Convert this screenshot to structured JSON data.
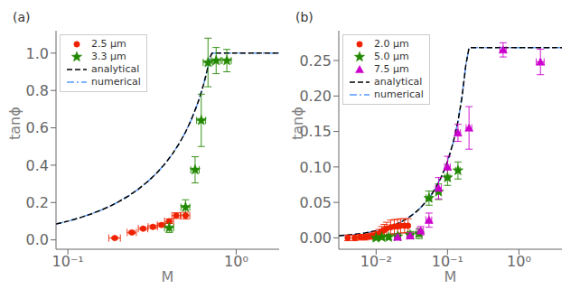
{
  "chart_data": [
    {
      "type": "scatter",
      "title": "(a)",
      "x_label": "M",
      "y_label": "tanϕ",
      "log": "x",
      "legend": "upper left",
      "xlim": [
        0.085,
        1.8
      ],
      "ylim": [
        -0.05,
        1.12
      ],
      "xticks": [
        {
          "value": 0.1,
          "label": "10⁻¹"
        },
        {
          "value": 1,
          "label": "10⁰"
        }
      ],
      "yticks": [
        {
          "value": 0.0,
          "label": "0.0"
        },
        0.2,
        0.4,
        0.6,
        0.8,
        {
          "value": 1.0,
          "label": "1.0"
        }
      ],
      "series": [
        {
          "name": "2.5 μm",
          "type": "scatter",
          "color": "#ee2200",
          "marker": "circle",
          "x": [
            0.19,
            0.24,
            0.28,
            0.32,
            0.36,
            0.4,
            0.44,
            0.5
          ],
          "values": [
            0.01,
            0.04,
            0.06,
            0.07,
            0.08,
            0.1,
            0.13,
            0.13
          ],
          "xerr": [
            0.015,
            0.015,
            0.018,
            0.02,
            0.02,
            0.025,
            0.025,
            0.03
          ],
          "yerr": [
            0.005,
            0.006,
            0.007,
            0.008,
            0.009,
            0.012,
            0.015,
            0.018
          ]
        },
        {
          "name": "3.3 μm",
          "type": "scatter",
          "color": "#228800",
          "marker": "star",
          "x": [
            0.4,
            0.5,
            0.57,
            0.62,
            0.68,
            0.76,
            0.88
          ],
          "values": [
            0.065,
            0.175,
            0.375,
            0.64,
            0.95,
            0.96,
            0.96
          ],
          "xerr": [
            0.025,
            0.03,
            0.033,
            0.038,
            0.043,
            0.048,
            0.055
          ],
          "yerr": [
            0.025,
            0.04,
            0.07,
            0.14,
            0.13,
            0.07,
            0.06
          ]
        },
        {
          "name": "analytical",
          "type": "line",
          "color": "#000000",
          "line_style": "dashed",
          "x": [
            0.085,
            0.09,
            0.1,
            0.11,
            0.12,
            0.14,
            0.16,
            0.18,
            0.2,
            0.23,
            0.26,
            0.3,
            0.34,
            0.38,
            0.42,
            0.46,
            0.5,
            0.54,
            0.58,
            0.6,
            0.62,
            0.64,
            0.66,
            0.68,
            0.7,
            0.72,
            0.74,
            0.76,
            0.78,
            0.8,
            0.85,
            0.9,
            1.0,
            1.2,
            1.5,
            1.8
          ],
          "values": [
            0.085309,
            0.090367,
            0.100504,
            0.110672,
            0.120873,
            0.141392,
            0.162088,
            0.182989,
            0.204124,
            0.236336,
            0.26926,
            0.314485,
            0.361539,
            0.410817,
            0.462798,
            0.518065,
            0.57735,
            0.641585,
            0.711991,
            0.75,
            0.790209,
            0.832927,
            0.878517,
            0.927427,
            0.980196,
            1.0,
            1.0,
            1.0,
            1.0,
            1.0,
            1.0,
            1.0,
            1.0,
            1.0,
            1.0,
            1.0
          ]
        },
        {
          "name": "numerical",
          "type": "line",
          "color": "#5599ff",
          "line_style": "dashdot",
          "x": [
            0.085,
            0.09,
            0.1,
            0.11,
            0.12,
            0.14,
            0.16,
            0.18,
            0.2,
            0.23,
            0.26,
            0.3,
            0.34,
            0.38,
            0.42,
            0.46,
            0.5,
            0.54,
            0.58,
            0.6,
            0.62,
            0.64,
            0.66,
            0.68,
            0.7,
            0.72,
            0.74,
            0.76,
            0.78,
            0.8,
            0.85,
            0.9,
            1.0,
            1.2,
            1.5,
            1.8
          ],
          "values": [
            0.085309,
            0.090367,
            0.100504,
            0.110672,
            0.120873,
            0.141392,
            0.162088,
            0.182989,
            0.204124,
            0.236336,
            0.26926,
            0.314485,
            0.361539,
            0.410817,
            0.462798,
            0.518065,
            0.57735,
            0.641585,
            0.711991,
            0.75,
            0.790209,
            0.832927,
            0.878517,
            0.927427,
            0.980196,
            1.0,
            1.0,
            1.0,
            1.0,
            1.0,
            1.0,
            1.0,
            1.0,
            1.0,
            1.0,
            1.0
          ]
        }
      ]
    },
    {
      "type": "scatter",
      "title": "(b)",
      "x_label": "M",
      "y_label": "tanϕ",
      "log": "x",
      "legend": "upper left",
      "xlim": [
        0.003,
        4.0
      ],
      "ylim": [
        -0.016,
        0.292
      ],
      "xticks": [
        {
          "value": 0.01,
          "label": "10⁻²"
        },
        {
          "value": 0.1,
          "label": "10⁻¹"
        },
        {
          "value": 1,
          "label": "10⁰"
        }
      ],
      "yticks": [
        {
          "value": 0.0,
          "label": "0.00"
        },
        0.05,
        {
          "value": 0.1,
          "label": "0.10"
        },
        0.15,
        {
          "value": 0.2,
          "label": "0.20"
        },
        0.25
      ],
      "series": [
        {
          "name": "2.0 μm",
          "type": "scatter",
          "color": "#ee2200",
          "marker": "circle",
          "x": [
            0.004,
            0.005,
            0.006,
            0.007,
            0.008,
            0.009,
            0.01,
            0.011,
            0.012,
            0.013,
            0.014,
            0.016,
            0.018,
            0.02,
            0.022,
            0.025,
            0.028
          ],
          "values": [
            0.0,
            0.0,
            0.001,
            0.001,
            0.002,
            0.003,
            0.004,
            0.006,
            0.009,
            0.011,
            0.013,
            0.015,
            0.016,
            0.016,
            0.017,
            0.017,
            0.017
          ],
          "xerr": [
            0.0,
            0.0,
            0.0,
            0.0,
            0.0,
            0.0,
            0.0,
            0.0,
            0.0,
            0.0,
            0.0,
            0.0,
            0.0,
            0.0,
            0.0,
            0.0,
            0.0
          ],
          "yerr": [
            0.004,
            0.004,
            0.004,
            0.004,
            0.004,
            0.004,
            0.005,
            0.006,
            0.007,
            0.008,
            0.009,
            0.01,
            0.01,
            0.01,
            0.01,
            0.01,
            0.01
          ]
        },
        {
          "name": "5.0 μm",
          "type": "scatter",
          "color": "#228800",
          "marker": "star",
          "x": [
            0.01,
            0.012,
            0.015,
            0.02,
            0.03,
            0.04,
            0.055,
            0.075,
            0.1,
            0.14
          ],
          "values": [
            0.0,
            0.001,
            0.001,
            0.002,
            0.004,
            0.006,
            0.056,
            0.065,
            0.085,
            0.095
          ],
          "xerr": [
            0.001,
            0.001,
            0.001,
            0.002,
            0.003,
            0.004,
            0.005,
            0.006,
            0.008,
            0.01
          ],
          "yerr": [
            0.002,
            0.003,
            0.003,
            0.004,
            0.005,
            0.007,
            0.01,
            0.011,
            0.011,
            0.012
          ]
        },
        {
          "name": "7.5 μm",
          "type": "scatter",
          "color": "#cc00cc",
          "marker": "triangle",
          "x": [
            0.02,
            0.03,
            0.042,
            0.055,
            0.075,
            0.1,
            0.14,
            0.2,
            0.6,
            2.0
          ],
          "values": [
            0.001,
            0.003,
            0.01,
            0.025,
            0.07,
            0.1,
            0.148,
            0.155,
            0.265,
            0.248
          ],
          "xerr": [
            0.002,
            0.003,
            0.004,
            0.005,
            0.007,
            0.009,
            0.012,
            0.018,
            0.06,
            0.25
          ],
          "yerr": [
            0.003,
            0.004,
            0.006,
            0.01,
            0.015,
            0.015,
            0.012,
            0.03,
            0.01,
            0.018
          ]
        },
        {
          "name": "analytical",
          "type": "line",
          "color": "#000000",
          "line_style": "dashed",
          "x": [
            0.003,
            0.004,
            0.005,
            0.006,
            0.007,
            0.008,
            0.009,
            0.01,
            0.012,
            0.014,
            0.016,
            0.018,
            0.02,
            0.025,
            0.03,
            0.035,
            0.04,
            0.05,
            0.06,
            0.07,
            0.08,
            0.09,
            0.1,
            0.12,
            0.14,
            0.16,
            0.18,
            0.2,
            0.22,
            0.24,
            0.25,
            0.26,
            0.27,
            0.28,
            0.3,
            0.35,
            0.4,
            0.5,
            0.6,
            0.7,
            0.8,
            1.0,
            1.5,
            2.0,
            3.0,
            4.0
          ],
          "values": [
            0.0030002,
            0.0040004,
            0.0050009,
            0.0060015,
            0.0070024,
            0.0080036,
            0.0090051,
            0.010007,
            0.012012,
            0.0140191,
            0.0160286,
            0.0180407,
            0.0200559,
            0.0251095,
            0.0301898,
            0.0353024,
            0.0404531,
            0.0508936,
            0.0615626,
            0.0725174,
            0.0838217,
            0.095549,
            0.1077845,
            0.134205,
            0.164183,
            0.199444,
            0.2429555,
            0.268,
            0.268,
            0.268,
            0.268,
            0.268,
            0.268,
            0.268,
            0.268,
            0.268,
            0.268,
            0.268,
            0.268,
            0.268,
            0.268,
            0.268,
            0.268,
            0.268,
            0.268,
            0.268
          ]
        },
        {
          "name": "numerical",
          "type": "line",
          "color": "#5599ff",
          "line_style": "dashdot",
          "x": [
            0.003,
            0.004,
            0.005,
            0.006,
            0.007,
            0.008,
            0.009,
            0.01,
            0.012,
            0.014,
            0.016,
            0.018,
            0.02,
            0.025,
            0.03,
            0.035,
            0.04,
            0.05,
            0.06,
            0.07,
            0.08,
            0.09,
            0.1,
            0.12,
            0.14,
            0.16,
            0.18,
            0.2,
            0.22,
            0.24,
            0.25,
            0.26,
            0.27,
            0.28,
            0.3,
            0.35,
            0.4,
            0.5,
            0.6,
            0.7,
            0.8,
            1.0,
            1.5,
            2.0,
            3.0,
            4.0
          ],
          "values": [
            0.0030002,
            0.0040004,
            0.0050009,
            0.0060015,
            0.0070024,
            0.0080036,
            0.0090051,
            0.010007,
            0.012012,
            0.0140191,
            0.0160286,
            0.0180407,
            0.0200559,
            0.0251095,
            0.0301898,
            0.0353024,
            0.0404531,
            0.0508936,
            0.0615626,
            0.0725174,
            0.0838217,
            0.095549,
            0.1077845,
            0.134205,
            0.164183,
            0.199444,
            0.2429555,
            0.268,
            0.268,
            0.268,
            0.268,
            0.268,
            0.268,
            0.268,
            0.268,
            0.268,
            0.268,
            0.268,
            0.268,
            0.268,
            0.268,
            0.268,
            0.268,
            0.268,
            0.268,
            0.268
          ]
        }
      ]
    }
  ]
}
